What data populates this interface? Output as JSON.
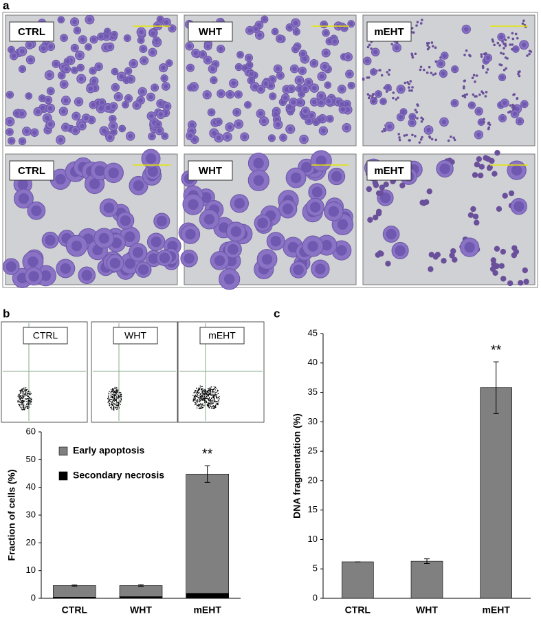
{
  "panel_labels": {
    "a": "a",
    "b": "b",
    "c": "c"
  },
  "micrographs": {
    "row1": [
      "CTRL",
      "WHT",
      "mEHT"
    ],
    "row2": [
      "CTRL",
      "WHT",
      "mEHT"
    ]
  },
  "flow_plots": [
    "CTRL",
    "WHT",
    "mEHT"
  ],
  "chart_data": [
    {
      "type": "stacked_bar",
      "ylabel": "Fraction of cells (%)",
      "categories": [
        "CTRL",
        "WHT",
        "mEHT"
      ],
      "series": [
        {
          "name": "Early apoptosis",
          "color": "#808080",
          "values": [
            4.2,
            4.0,
            43
          ],
          "errors": [
            0.2,
            0.3,
            3
          ]
        },
        {
          "name": "Secondary necrosis",
          "color": "#000000",
          "values": [
            0.4,
            0.6,
            1.8
          ]
        }
      ],
      "ylim": [
        0,
        60
      ],
      "yticks": [
        0,
        10,
        20,
        30,
        40,
        50,
        60
      ],
      "annotation": "**"
    },
    {
      "type": "bar",
      "ylabel": "DNA fragmentation (%)",
      "categories": [
        "CTRL",
        "WHT",
        "mEHT"
      ],
      "values": [
        6.2,
        6.3,
        35.8
      ],
      "errors": [
        0,
        0.4,
        4.4
      ],
      "color": "#808080",
      "ylim": [
        0,
        45
      ],
      "yticks": [
        0,
        5,
        10,
        15,
        20,
        25,
        30,
        35,
        40,
        45
      ],
      "annotation": "**"
    }
  ]
}
